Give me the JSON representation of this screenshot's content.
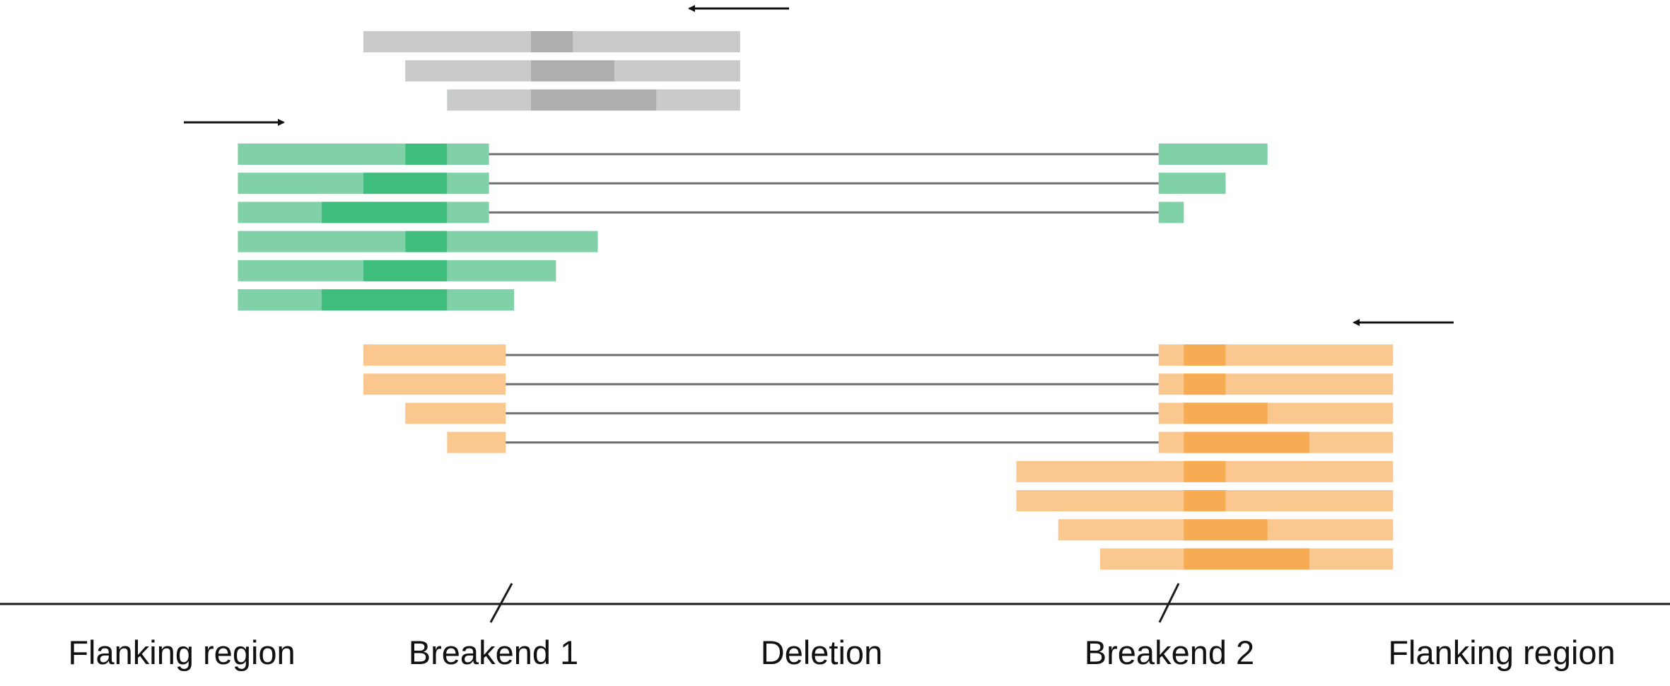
{
  "labels": {
    "flank_left": "Flanking region",
    "breakend_1": "Breakend 1",
    "deletion": "Deletion",
    "breakend_2": "Breakend 2",
    "flank_right": "Flanking region"
  },
  "colors": {
    "grey_light": "#c9cacb",
    "grey_dark": "#adaeaf",
    "green_light": "#80d1a8",
    "green_dark": "#3ebd7c",
    "orange_light": "#fac78f",
    "orange_dark": "#f7ac54",
    "connector": "#6d6e70",
    "baseline": "#1a1a1a",
    "arrow": "#111111"
  },
  "read_groups": [
    {
      "name": "grey",
      "direction": "left",
      "reads": [
        {
          "spans": [
            [
              0,
              4
            ],
            [
              4,
              5
            ],
            [
              5,
              9
            ]
          ]
        },
        {
          "spans": [
            [
              1,
              4
            ],
            [
              4,
              6
            ],
            [
              6,
              9
            ]
          ]
        },
        {
          "spans": [
            [
              2,
              4
            ],
            [
              4,
              7
            ],
            [
              7,
              9
            ]
          ]
        }
      ]
    },
    {
      "name": "green",
      "direction": "right",
      "reads": [
        {
          "spans": [
            [
              -3,
              1
            ],
            [
              1,
              2
            ],
            [
              2,
              3
            ]
          ],
          "joined_to": [
            19,
            21.6
          ]
        },
        {
          "spans": [
            [
              -3,
              0
            ],
            [
              0,
              2
            ],
            [
              2,
              3
            ]
          ],
          "joined_to": [
            19,
            20.6
          ]
        },
        {
          "spans": [
            [
              -3,
              -1
            ],
            [
              -1,
              2
            ],
            [
              2,
              3
            ]
          ],
          "joined_to": [
            19,
            19.6
          ]
        },
        {
          "spans": [
            [
              -3,
              1
            ],
            [
              1,
              2
            ],
            [
              2,
              5.6
            ]
          ]
        },
        {
          "spans": [
            [
              -3,
              0
            ],
            [
              0,
              2
            ],
            [
              2,
              4.6
            ]
          ]
        },
        {
          "spans": [
            [
              -3,
              -1
            ],
            [
              -1,
              2
            ],
            [
              2,
              3.6
            ]
          ]
        }
      ]
    },
    {
      "name": "orange",
      "direction": "left",
      "reads": [
        {
          "spans": [
            [
              0,
              3.4
            ]
          ],
          "joined_to": [
            19,
            24.6
          ],
          "dark": [
            19.6,
            20.6
          ]
        },
        {
          "spans": [
            [
              0,
              3.4
            ]
          ],
          "joined_to": [
            19,
            24.6
          ],
          "dark": [
            19.6,
            20.6
          ]
        },
        {
          "spans": [
            [
              1,
              3.4
            ]
          ],
          "joined_to": [
            19,
            24.6
          ],
          "dark": [
            19.6,
            21.6
          ]
        },
        {
          "spans": [
            [
              2,
              3.4
            ]
          ],
          "joined_to": [
            19,
            24.6
          ],
          "dark": [
            19.6,
            22.6
          ]
        },
        {
          "spans": [
            [
              15.6,
              24.6
            ]
          ],
          "dark": [
            19.6,
            20.6
          ]
        },
        {
          "spans": [
            [
              15.6,
              24.6
            ]
          ],
          "dark": [
            19.6,
            20.6
          ]
        },
        {
          "spans": [
            [
              16.6,
              24.6
            ]
          ],
          "dark": [
            19.6,
            21.6
          ]
        },
        {
          "spans": [
            [
              17.6,
              24.6
            ]
          ],
          "dark": [
            19.6,
            22.6
          ]
        }
      ]
    }
  ]
}
